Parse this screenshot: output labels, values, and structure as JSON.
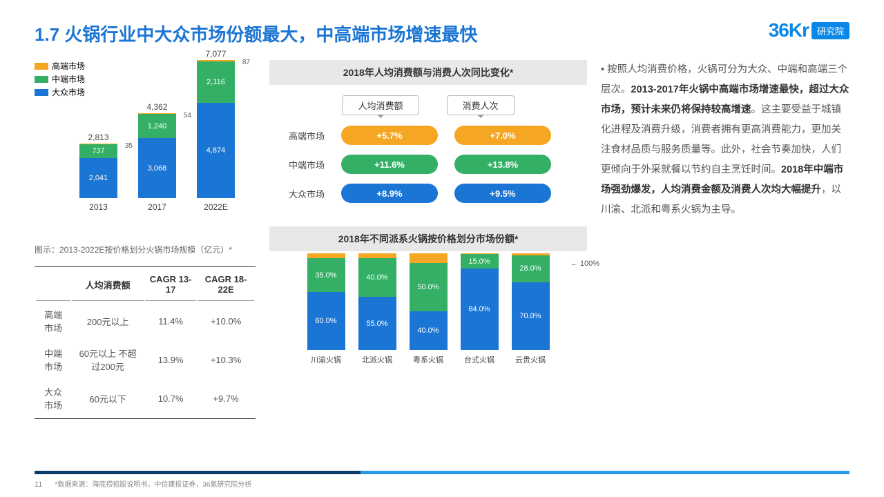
{
  "title": "1.7 火锅行业中大众市场份额最大，中高端市场增速最快",
  "logo": {
    "brand": "36Kr",
    "suffix": "研究院"
  },
  "colors": {
    "high": "#f5a623",
    "mid": "#33b066",
    "mass": "#1b75d4",
    "grey": "#e8e8e8"
  },
  "legend": [
    {
      "label": "高端市场",
      "color": "#f5a623"
    },
    {
      "label": "中端市场",
      "color": "#33b066"
    },
    {
      "label": "大众市场",
      "color": "#1b75d4"
    }
  ],
  "chart1": {
    "caption": "图示：2013-2022E按价格划分火锅市场规模（亿元）*",
    "max": 7077,
    "bars": [
      {
        "x": "2013",
        "total": "2,813",
        "tiny": "35",
        "segs": [
          {
            "v": 2041,
            "label": "2,041",
            "c": "#1b75d4"
          },
          {
            "v": 737,
            "label": "737",
            "c": "#33b066"
          },
          {
            "v": 35,
            "label": "",
            "c": "#f5a623"
          }
        ]
      },
      {
        "x": "2017",
        "total": "4,362",
        "tiny": "54",
        "segs": [
          {
            "v": 3068,
            "label": "3,068",
            "c": "#1b75d4"
          },
          {
            "v": 1240,
            "label": "1,240",
            "c": "#33b066"
          },
          {
            "v": 54,
            "label": "",
            "c": "#f5a623"
          }
        ]
      },
      {
        "x": "2022E",
        "total": "7,077",
        "tiny": "87",
        "segs": [
          {
            "v": 4874,
            "label": "4,874",
            "c": "#1b75d4"
          },
          {
            "v": 2116,
            "label": "2,116",
            "c": "#33b066"
          },
          {
            "v": 87,
            "label": "",
            "c": "#f5a623"
          }
        ]
      }
    ]
  },
  "table": {
    "headers": [
      "",
      "人均消费额",
      "CAGR 13-17",
      "CAGR 18-22E"
    ],
    "rows": [
      [
        "高端市场",
        "200元以上",
        "11.4%",
        "+10.0%"
      ],
      [
        "中端市场",
        "60元以上 不超过200元",
        "13.9%",
        "+10.3%"
      ],
      [
        "大众市场",
        "60元以下",
        "10.7%",
        "+9.7%"
      ]
    ]
  },
  "panel1": {
    "title": "2018年人均消费额与消费人次同比变化*",
    "colHeaders": [
      "人均消费额",
      "消费人次"
    ],
    "rows": [
      {
        "label": "高端市场",
        "v1": "+5.7%",
        "v2": "+7.0%",
        "c": "#f5a623"
      },
      {
        "label": "中端市场",
        "v1": "+11.6%",
        "v2": "+13.8%",
        "c": "#33b066"
      },
      {
        "label": "大众市场",
        "v1": "+8.9%",
        "v2": "+9.5%",
        "c": "#1b75d4"
      }
    ]
  },
  "panel2": {
    "title": "2018年不同派系火锅按价格划分市场份额*",
    "note": "100%",
    "bars": [
      {
        "x": "川渝火锅",
        "segs": [
          {
            "v": 60,
            "c": "#1b75d4",
            "label": "60.0%"
          },
          {
            "v": 35,
            "c": "#33b066",
            "label": "35.0%"
          },
          {
            "v": 5,
            "c": "#f5a623",
            "label": ""
          }
        ]
      },
      {
        "x": "北派火锅",
        "segs": [
          {
            "v": 55,
            "c": "#1b75d4",
            "label": "55.0%"
          },
          {
            "v": 40,
            "c": "#33b066",
            "label": "40.0%"
          },
          {
            "v": 5,
            "c": "#f5a623",
            "label": ""
          }
        ]
      },
      {
        "x": "粤系火锅",
        "segs": [
          {
            "v": 40,
            "c": "#1b75d4",
            "label": "40.0%"
          },
          {
            "v": 50,
            "c": "#33b066",
            "label": "50.0%"
          },
          {
            "v": 10,
            "c": "#f5a623",
            "label": ""
          }
        ]
      },
      {
        "x": "台式火锅",
        "segs": [
          {
            "v": 84,
            "c": "#1b75d4",
            "label": "84.0%"
          },
          {
            "v": 15,
            "c": "#33b066",
            "label": "15.0%"
          },
          {
            "v": 1,
            "c": "#f5a623",
            "label": ""
          }
        ]
      },
      {
        "x": "云贵火锅",
        "segs": [
          {
            "v": 70,
            "c": "#1b75d4",
            "label": "70.0%"
          },
          {
            "v": 28,
            "c": "#33b066",
            "label": "28.0%"
          },
          {
            "v": 2,
            "c": "#f5a623",
            "label": ""
          }
        ]
      }
    ]
  },
  "body": {
    "bullet": "•",
    "p1": "按照人均消费价格，火锅可分为大众、中端和高端三个层次。",
    "b1": "2013-2017年火锅中高端市场增速最快，超过大众市场，预计未来仍将保持较高增速",
    "p2": "。这主要受益于城镇化进程及消费升级，消费者拥有更高消费能力，更加关注食材品质与服务质量等。此外，社会节奏加快，人们更倾向于外采就餐以节约自主烹饪时间。",
    "b2": "2018年中端市场强劲爆发，人均消费金额及消费人次均大幅提升",
    "p3": "，以川渝、北派和粤系火锅为主导。"
  },
  "footer": {
    "page": "11",
    "source": "*数据来源：海底捞招股说明书，中信建投证券，36氪研究院分析"
  }
}
